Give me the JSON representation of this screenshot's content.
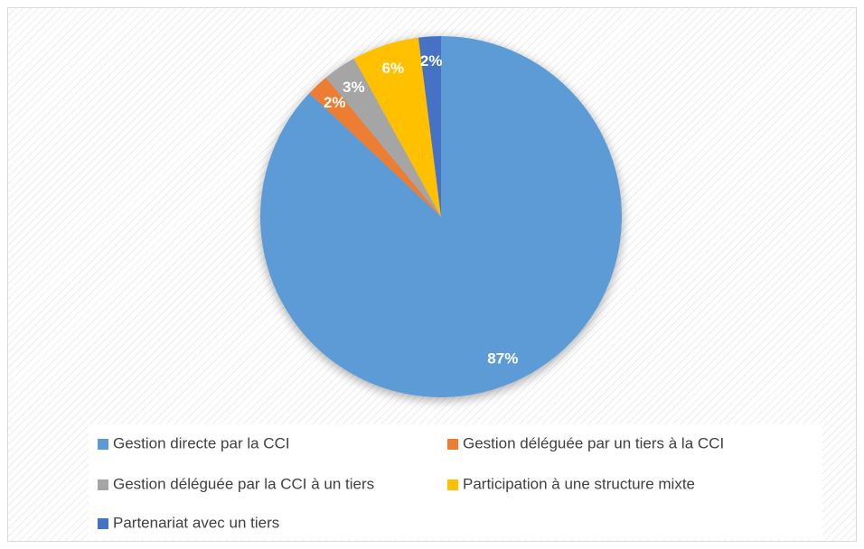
{
  "chart_data": {
    "type": "pie",
    "categories": [
      "Gestion directe par la CCI",
      "Gestion déléguée par un tiers à la CCI",
      "Gestion déléguée par la CCI à un tiers",
      "Participation à une structure mixte",
      "Partenariat avec un tiers"
    ],
    "values": [
      87,
      2,
      3,
      6,
      2
    ],
    "value_labels": [
      "87%",
      "2%",
      "3%",
      "6%",
      "2%"
    ],
    "colors": [
      "#5b9bd5",
      "#ed7d31",
      "#a5a5a5",
      "#ffc000",
      "#4472c4"
    ],
    "legend": "bottom"
  }
}
